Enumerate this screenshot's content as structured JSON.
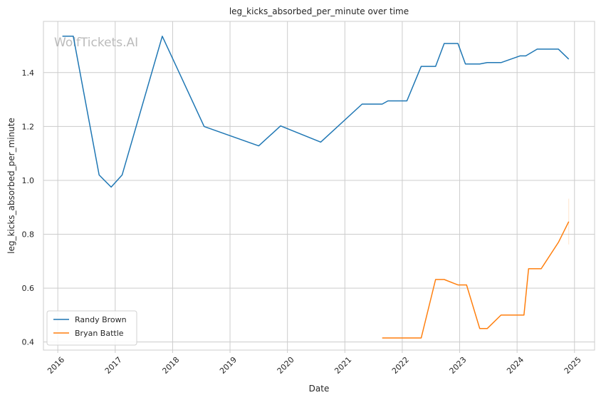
{
  "chart_data": {
    "type": "line",
    "title": "leg_kicks_absorbed_per_minute over time",
    "xlabel": "Date",
    "ylabel": "leg_kicks_absorbed_per_minute",
    "watermark": "WolfTickets.AI",
    "xlim": [
      2015.75,
      2025.35
    ],
    "ylim": [
      0.37,
      1.59
    ],
    "xticks": [
      2016,
      2017,
      2018,
      2019,
      2020,
      2021,
      2022,
      2023,
      2024,
      2025
    ],
    "xtick_labels": [
      "2016",
      "2017",
      "2018",
      "2019",
      "2020",
      "2021",
      "2022",
      "2023",
      "2024",
      "2025"
    ],
    "yticks": [
      0.4,
      0.6,
      0.8,
      1.0,
      1.2,
      1.4
    ],
    "ytick_labels": [
      "0.4",
      "0.6",
      "0.8",
      "1.0",
      "1.2",
      "1.4"
    ],
    "grid": true,
    "legend_position": "lower-left",
    "series": [
      {
        "name": "Randy Brown",
        "color": "#1f77b4",
        "points": [
          [
            2016.08,
            1.535
          ],
          [
            2016.27,
            1.535
          ],
          [
            2016.72,
            1.02
          ],
          [
            2016.93,
            0.975
          ],
          [
            2017.12,
            1.02
          ],
          [
            2017.82,
            1.535
          ],
          [
            2018.55,
            1.2
          ],
          [
            2019.5,
            1.128
          ],
          [
            2019.88,
            1.202
          ],
          [
            2020.58,
            1.142
          ],
          [
            2021.3,
            1.283
          ],
          [
            2021.65,
            1.283
          ],
          [
            2021.75,
            1.295
          ],
          [
            2022.08,
            1.295
          ],
          [
            2022.33,
            1.423
          ],
          [
            2022.58,
            1.423
          ],
          [
            2022.73,
            1.508
          ],
          [
            2022.97,
            1.508
          ],
          [
            2023.1,
            1.432
          ],
          [
            2023.35,
            1.432
          ],
          [
            2023.48,
            1.437
          ],
          [
            2023.72,
            1.437
          ],
          [
            2024.05,
            1.462
          ],
          [
            2024.15,
            1.462
          ],
          [
            2024.35,
            1.487
          ],
          [
            2024.72,
            1.487
          ],
          [
            2024.9,
            1.45
          ]
        ]
      },
      {
        "name": "Bryan Battle",
        "color": "#ff7f0e",
        "points": [
          [
            2021.65,
            0.415
          ],
          [
            2022.33,
            0.415
          ],
          [
            2022.58,
            0.632
          ],
          [
            2022.73,
            0.632
          ],
          [
            2022.97,
            0.612
          ],
          [
            2023.12,
            0.612
          ],
          [
            2023.35,
            0.45
          ],
          [
            2023.48,
            0.45
          ],
          [
            2023.72,
            0.5
          ],
          [
            2024.12,
            0.5
          ],
          [
            2024.2,
            0.672
          ],
          [
            2024.42,
            0.672
          ],
          [
            2024.72,
            0.77
          ],
          [
            2024.9,
            0.847
          ]
        ]
      }
    ]
  }
}
